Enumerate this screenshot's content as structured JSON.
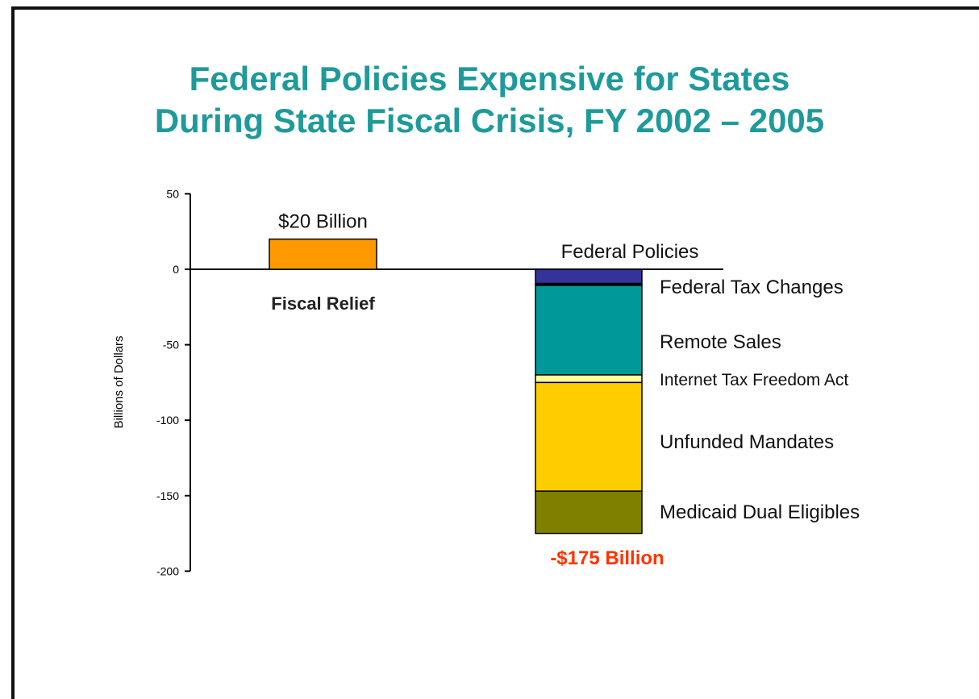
{
  "chart_data": {
    "type": "bar",
    "title_lines": [
      "Federal Policies Expensive for States",
      "During State Fiscal Crisis, FY 2002 – 2005"
    ],
    "ylabel": "Billions of Dollars",
    "ylim": [
      -200,
      50
    ],
    "yticks": [
      50,
      0,
      -50,
      -100,
      -150,
      -200
    ],
    "categories": [
      "Fiscal Relief",
      "Federal Policies"
    ],
    "fiscal_relief": {
      "label": "Fiscal Relief",
      "value": 20,
      "value_label": "$20 Billion",
      "color": "#ff9900"
    },
    "federal_policies": {
      "label": "Federal Policies",
      "total_label": "-$175 Billion",
      "total_color": "#ff3300",
      "segments": [
        {
          "name": "Federal Tax Changes",
          "value": -10,
          "color": "#333399"
        },
        {
          "name": "Remote Sales",
          "value": -60,
          "color": "#009999"
        },
        {
          "name": "Internet Tax Freedom Act",
          "value": -5,
          "color": "#ffff99"
        },
        {
          "name": "Unfunded Mandates",
          "value": -72,
          "color": "#ffcc00"
        },
        {
          "name": "Medicaid Dual Eligibles",
          "value": -28,
          "color": "#808000"
        }
      ]
    },
    "title_color": "#1f9a9a",
    "grid": false
  }
}
